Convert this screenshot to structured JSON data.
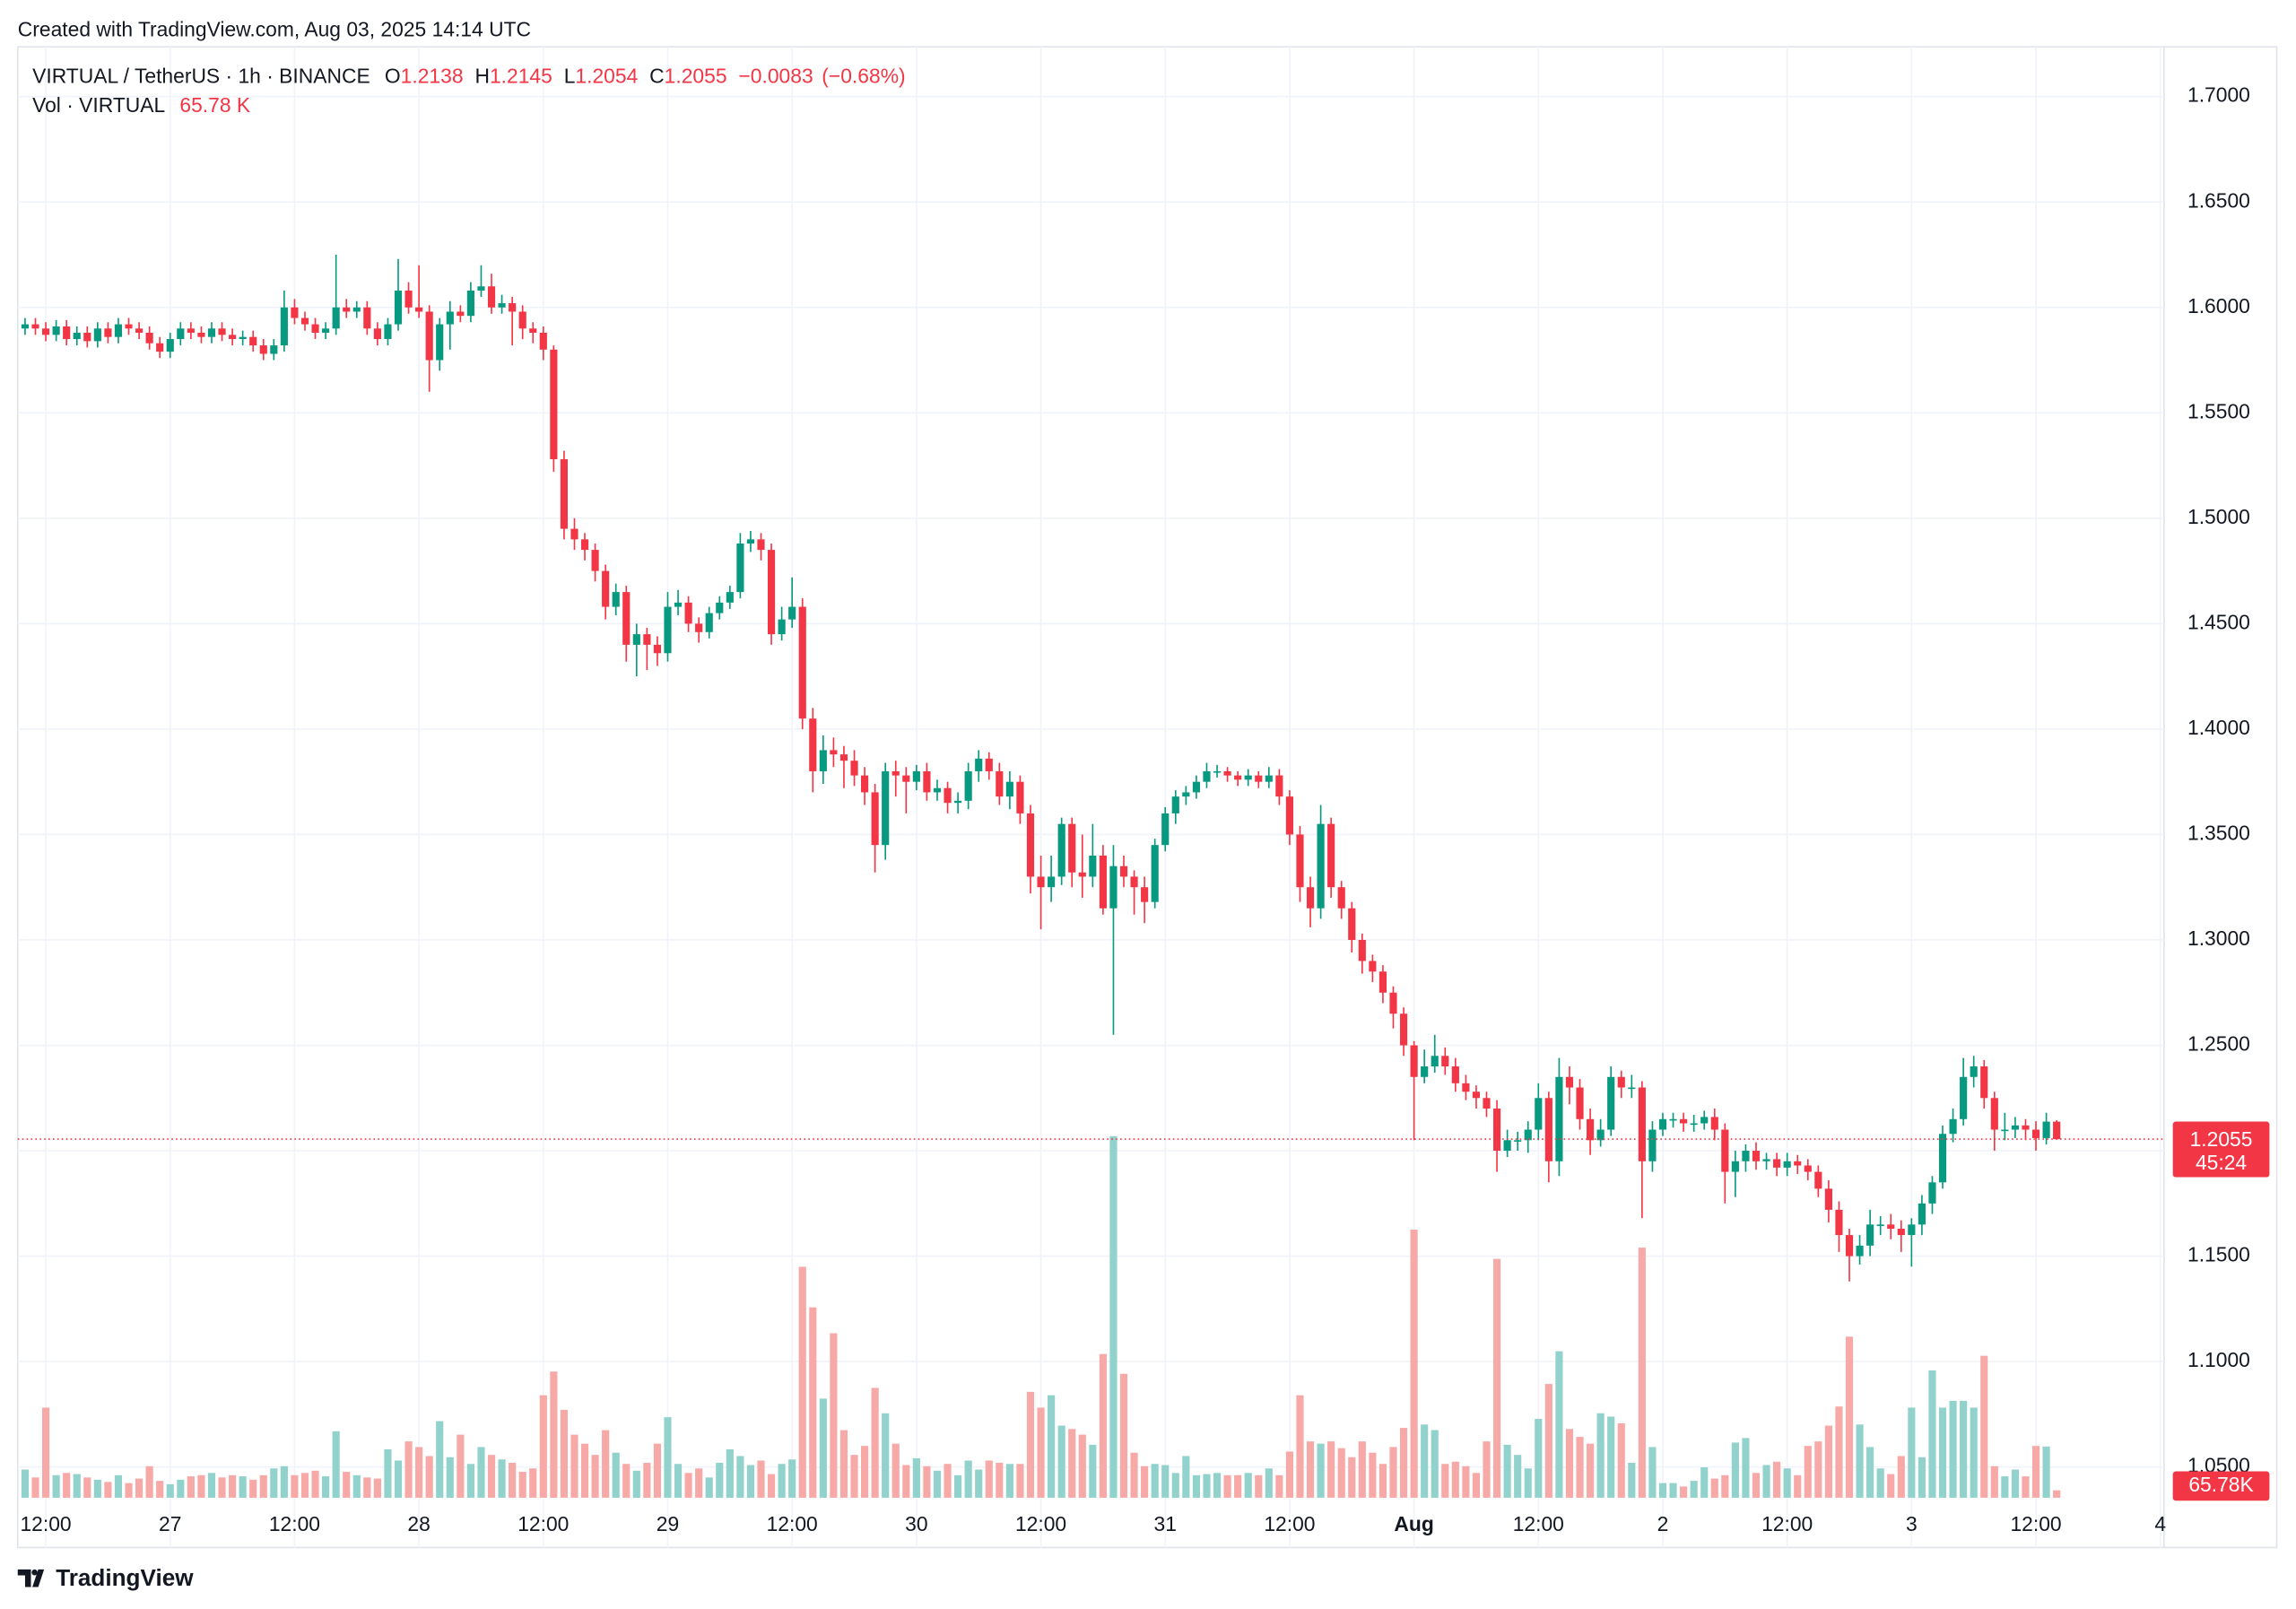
{
  "header": {
    "created": "Created with TradingView.com, Aug 03, 2025 14:14 UTC"
  },
  "chart_data": {
    "type": "candlestick",
    "symbol": "VIRTUAL / TetherUS · 1h · BINANCE",
    "legend_keys": {
      "open": "O",
      "high": "H",
      "low": "L",
      "close": "C"
    },
    "last": {
      "open": 1.2138,
      "high": 1.2145,
      "low": 1.2054,
      "close": 1.2055,
      "change": {
        "value": -0.0083,
        "label": "−0.0083"
      },
      "change_pct": {
        "value": -0.68,
        "label": "(−0.68%)"
      },
      "volume": {
        "value": 65.78,
        "label": "65.78 K"
      }
    },
    "volume_title": "Vol · VIRTUAL",
    "countdown": "45:24",
    "volume_tag": {
      "value": 65.78,
      "label": "65.78K"
    },
    "up_color": "#089981",
    "down_color": "#f23645",
    "up_volume_color": "#92d2cc",
    "down_volume_color": "#f7a9a7",
    "grid": true,
    "ylim": [
      1.0118,
      1.7236
    ],
    "yticks": [
      {
        "value": 1.05,
        "label": "1.0500"
      },
      {
        "value": 1.1,
        "label": "1.1000"
      },
      {
        "value": 1.15,
        "label": "1.1500"
      },
      {
        "value": 1.2,
        "label": "1.2000"
      },
      {
        "value": 1.25,
        "label": "1.2500"
      },
      {
        "value": 1.3,
        "label": "1.3000"
      },
      {
        "value": 1.35,
        "label": "1.3500"
      },
      {
        "value": 1.4,
        "label": "1.4000"
      },
      {
        "value": 1.45,
        "label": "1.4500"
      },
      {
        "value": 1.5,
        "label": "1.5000"
      },
      {
        "value": 1.55,
        "label": "1.5500"
      },
      {
        "value": 1.6,
        "label": "1.6000"
      },
      {
        "value": 1.65,
        "label": "1.6500"
      },
      {
        "value": 1.7,
        "label": "1.7000"
      }
    ],
    "xlim": [
      -0.706,
      206.36
    ],
    "xticks": [
      {
        "value": 2,
        "label": "12:00"
      },
      {
        "value": 14,
        "label": "27"
      },
      {
        "value": 26,
        "label": "12:00"
      },
      {
        "value": 38,
        "label": "28"
      },
      {
        "value": 50,
        "label": "12:00"
      },
      {
        "value": 62,
        "label": "29"
      },
      {
        "value": 74,
        "label": "12:00"
      },
      {
        "value": 86,
        "label": "30"
      },
      {
        "value": 98,
        "label": "12:00"
      },
      {
        "value": 110,
        "label": "31"
      },
      {
        "value": 122,
        "label": "12:00"
      },
      {
        "value": 134,
        "label": "Aug"
      },
      {
        "value": 146,
        "label": "12:00"
      },
      {
        "value": 158,
        "label": "2"
      },
      {
        "value": 170,
        "label": "12:00"
      },
      {
        "value": 182,
        "label": "3"
      },
      {
        "value": 194,
        "label": "12:00"
      },
      {
        "value": 206,
        "label": "4"
      }
    ],
    "open": [
      1.59,
      1.592,
      1.59,
      1.587,
      1.591,
      1.585,
      1.588,
      1.584,
      1.59,
      1.586,
      1.592,
      1.59,
      1.588,
      1.583,
      1.579,
      1.585,
      1.59,
      1.588,
      1.586,
      1.59,
      1.587,
      1.585,
      1.586,
      1.582,
      1.578,
      1.582,
      1.6,
      1.595,
      1.592,
      1.588,
      1.59,
      1.6,
      1.598,
      1.6,
      1.59,
      1.585,
      1.592,
      1.608,
      1.6,
      1.598,
      1.575,
      1.592,
      1.598,
      1.596,
      1.608,
      1.61,
      1.6,
      1.602,
      1.598,
      1.59,
      1.588,
      1.58,
      1.528,
      1.495,
      1.49,
      1.485,
      1.475,
      1.458,
      1.465,
      1.44,
      1.445,
      1.44,
      1.436,
      1.458,
      1.46,
      1.45,
      1.446,
      1.455,
      1.46,
      1.465,
      1.488,
      1.49,
      1.485,
      1.445,
      1.452,
      1.458,
      1.405,
      1.38,
      1.39,
      1.388,
      1.385,
      1.378,
      1.37,
      1.345,
      1.38,
      1.378,
      1.375,
      1.38,
      1.37,
      1.372,
      1.365,
      1.366,
      1.38,
      1.386,
      1.38,
      1.368,
      1.375,
      1.36,
      1.33,
      1.325,
      1.33,
      1.355,
      1.332,
      1.33,
      1.34,
      1.315,
      1.335,
      1.33,
      1.325,
      1.318,
      1.345,
      1.36,
      1.368,
      1.37,
      1.375,
      1.38,
      1.38,
      1.378,
      1.376,
      1.378,
      1.375,
      1.378,
      1.368,
      1.35,
      1.325,
      1.315,
      1.355,
      1.325,
      1.315,
      1.3,
      1.29,
      1.285,
      1.275,
      1.265,
      1.25,
      1.235,
      1.24,
      1.245,
      1.24,
      1.232,
      1.228,
      1.225,
      1.22,
      1.2,
      1.205,
      1.205,
      1.21,
      1.225,
      1.195,
      1.235,
      1.23,
      1.215,
      1.205,
      1.21,
      1.235,
      1.23,
      1.23,
      1.195,
      1.21,
      1.215,
      1.215,
      1.213,
      1.213,
      1.216,
      1.21,
      1.19,
      1.195,
      1.2,
      1.195,
      1.196,
      1.192,
      1.195,
      1.193,
      1.19,
      1.182,
      1.172,
      1.16,
      1.15,
      1.155,
      1.165,
      1.165,
      1.163,
      1.16,
      1.165,
      1.175,
      1.185,
      1.208,
      1.215,
      1.235,
      1.24,
      1.225,
      1.21,
      1.21,
      1.212,
      1.21,
      1.206,
      1.2138
    ],
    "high": [
      1.595,
      1.595,
      1.593,
      1.594,
      1.594,
      1.591,
      1.591,
      1.593,
      1.593,
      1.595,
      1.595,
      1.593,
      1.591,
      1.586,
      1.588,
      1.593,
      1.593,
      1.591,
      1.593,
      1.593,
      1.59,
      1.589,
      1.589,
      1.585,
      1.585,
      1.608,
      1.604,
      1.598,
      1.595,
      1.593,
      1.625,
      1.604,
      1.603,
      1.603,
      1.593,
      1.595,
      1.623,
      1.612,
      1.62,
      1.601,
      1.595,
      1.603,
      1.601,
      1.612,
      1.62,
      1.616,
      1.606,
      1.605,
      1.601,
      1.593,
      1.591,
      1.582,
      1.532,
      1.5,
      1.493,
      1.488,
      1.478,
      1.469,
      1.468,
      1.45,
      1.448,
      1.444,
      1.465,
      1.466,
      1.463,
      1.453,
      1.458,
      1.463,
      1.468,
      1.493,
      1.494,
      1.493,
      1.488,
      1.458,
      1.472,
      1.462,
      1.41,
      1.397,
      1.396,
      1.392,
      1.39,
      1.382,
      1.374,
      1.384,
      1.385,
      1.382,
      1.383,
      1.384,
      1.376,
      1.375,
      1.37,
      1.384,
      1.39,
      1.389,
      1.384,
      1.38,
      1.378,
      1.364,
      1.34,
      1.34,
      1.358,
      1.358,
      1.35,
      1.355,
      1.345,
      1.345,
      1.34,
      1.333,
      1.33,
      1.348,
      1.363,
      1.371,
      1.373,
      1.378,
      1.384,
      1.383,
      1.382,
      1.38,
      1.381,
      1.38,
      1.382,
      1.381,
      1.371,
      1.354,
      1.33,
      1.364,
      1.358,
      1.328,
      1.318,
      1.303,
      1.293,
      1.288,
      1.278,
      1.268,
      1.252,
      1.248,
      1.255,
      1.249,
      1.244,
      1.236,
      1.231,
      1.228,
      1.224,
      1.21,
      1.209,
      1.214,
      1.232,
      1.228,
      1.244,
      1.24,
      1.234,
      1.22,
      1.215,
      1.24,
      1.238,
      1.236,
      1.233,
      1.214,
      1.218,
      1.218,
      1.218,
      1.217,
      1.219,
      1.22,
      1.213,
      1.2,
      1.203,
      1.204,
      1.199,
      1.199,
      1.199,
      1.198,
      1.196,
      1.193,
      1.186,
      1.176,
      1.163,
      1.16,
      1.172,
      1.169,
      1.17,
      1.167,
      1.168,
      1.179,
      1.188,
      1.212,
      1.22,
      1.244,
      1.245,
      1.243,
      1.228,
      1.218,
      1.216,
      1.215,
      1.214,
      1.218,
      1.2145
    ],
    "low": [
      1.587,
      1.587,
      1.584,
      1.584,
      1.582,
      1.582,
      1.581,
      1.581,
      1.583,
      1.583,
      1.587,
      1.585,
      1.58,
      1.576,
      1.576,
      1.582,
      1.585,
      1.583,
      1.583,
      1.584,
      1.582,
      1.582,
      1.579,
      1.575,
      1.575,
      1.579,
      1.592,
      1.589,
      1.585,
      1.585,
      1.587,
      1.595,
      1.595,
      1.587,
      1.582,
      1.582,
      1.589,
      1.597,
      1.595,
      1.56,
      1.57,
      1.58,
      1.593,
      1.593,
      1.605,
      1.597,
      1.597,
      1.582,
      1.585,
      1.583,
      1.575,
      1.522,
      1.49,
      1.485,
      1.48,
      1.47,
      1.452,
      1.454,
      1.432,
      1.425,
      1.428,
      1.43,
      1.432,
      1.454,
      1.446,
      1.441,
      1.443,
      1.452,
      1.457,
      1.462,
      1.484,
      1.48,
      1.44,
      1.442,
      1.448,
      1.4,
      1.37,
      1.374,
      1.382,
      1.372,
      1.373,
      1.364,
      1.332,
      1.338,
      1.368,
      1.36,
      1.371,
      1.366,
      1.366,
      1.36,
      1.36,
      1.362,
      1.375,
      1.376,
      1.364,
      1.362,
      1.355,
      1.322,
      1.305,
      1.318,
      1.326,
      1.325,
      1.32,
      1.325,
      1.312,
      1.255,
      1.325,
      1.312,
      1.308,
      1.315,
      1.342,
      1.355,
      1.364,
      1.367,
      1.372,
      1.377,
      1.375,
      1.373,
      1.373,
      1.372,
      1.372,
      1.364,
      1.345,
      1.318,
      1.306,
      1.31,
      1.32,
      1.31,
      1.294,
      1.284,
      1.28,
      1.27,
      1.258,
      1.245,
      1.205,
      1.232,
      1.237,
      1.236,
      1.228,
      1.224,
      1.22,
      1.216,
      1.19,
      1.197,
      1.2,
      1.199,
      1.205,
      1.185,
      1.188,
      1.222,
      1.21,
      1.198,
      1.202,
      1.207,
      1.225,
      1.225,
      1.168,
      1.19,
      1.207,
      1.211,
      1.209,
      1.209,
      1.21,
      1.205,
      1.175,
      1.178,
      1.19,
      1.191,
      1.191,
      1.188,
      1.188,
      1.189,
      1.186,
      1.178,
      1.166,
      1.152,
      1.138,
      1.146,
      1.15,
      1.16,
      1.158,
      1.152,
      1.145,
      1.16,
      1.17,
      1.182,
      1.204,
      1.212,
      1.23,
      1.22,
      1.2,
      1.205,
      1.206,
      1.205,
      1.2,
      1.203,
      1.2054
    ],
    "close": [
      1.592,
      1.59,
      1.587,
      1.591,
      1.585,
      1.588,
      1.584,
      1.59,
      1.586,
      1.592,
      1.59,
      1.588,
      1.583,
      1.579,
      1.585,
      1.59,
      1.588,
      1.586,
      1.59,
      1.587,
      1.585,
      1.586,
      1.582,
      1.578,
      1.582,
      1.6,
      1.595,
      1.592,
      1.588,
      1.59,
      1.6,
      1.598,
      1.6,
      1.59,
      1.585,
      1.592,
      1.608,
      1.6,
      1.598,
      1.575,
      1.592,
      1.598,
      1.596,
      1.608,
      1.61,
      1.6,
      1.602,
      1.598,
      1.59,
      1.588,
      1.58,
      1.528,
      1.495,
      1.49,
      1.485,
      1.475,
      1.458,
      1.465,
      1.44,
      1.445,
      1.44,
      1.436,
      1.458,
      1.46,
      1.45,
      1.446,
      1.455,
      1.46,
      1.465,
      1.488,
      1.49,
      1.485,
      1.445,
      1.452,
      1.458,
      1.405,
      1.38,
      1.39,
      1.388,
      1.385,
      1.378,
      1.37,
      1.345,
      1.38,
      1.378,
      1.375,
      1.38,
      1.37,
      1.372,
      1.365,
      1.366,
      1.38,
      1.386,
      1.38,
      1.368,
      1.375,
      1.36,
      1.33,
      1.325,
      1.33,
      1.355,
      1.332,
      1.33,
      1.34,
      1.315,
      1.335,
      1.33,
      1.325,
      1.318,
      1.345,
      1.36,
      1.368,
      1.37,
      1.375,
      1.38,
      1.38,
      1.378,
      1.376,
      1.378,
      1.375,
      1.378,
      1.368,
      1.35,
      1.325,
      1.315,
      1.355,
      1.325,
      1.315,
      1.3,
      1.29,
      1.285,
      1.275,
      1.265,
      1.25,
      1.235,
      1.24,
      1.245,
      1.24,
      1.232,
      1.228,
      1.225,
      1.22,
      1.2,
      1.205,
      1.205,
      1.21,
      1.225,
      1.195,
      1.235,
      1.23,
      1.215,
      1.205,
      1.21,
      1.235,
      1.23,
      1.23,
      1.195,
      1.21,
      1.215,
      1.215,
      1.213,
      1.213,
      1.216,
      1.21,
      1.19,
      1.195,
      1.2,
      1.195,
      1.196,
      1.192,
      1.195,
      1.193,
      1.19,
      1.182,
      1.172,
      1.16,
      1.15,
      1.155,
      1.165,
      1.165,
      1.163,
      1.16,
      1.165,
      1.175,
      1.185,
      1.208,
      1.215,
      1.235,
      1.24,
      1.225,
      1.21,
      1.21,
      1.212,
      1.21,
      1.206,
      1.2138,
      1.2055
    ],
    "volume": [
      250,
      180,
      800,
      200,
      220,
      210,
      180,
      160,
      140,
      200,
      130,
      170,
      280,
      150,
      120,
      160,
      190,
      200,
      220,
      180,
      200,
      190,
      160,
      200,
      260,
      280,
      200,
      220,
      240,
      190,
      590,
      230,
      200,
      180,
      170,
      430,
      330,
      500,
      450,
      370,
      680,
      360,
      560,
      300,
      450,
      380,
      340,
      310,
      230,
      260,
      910,
      1120,
      780,
      560,
      480,
      380,
      600,
      400,
      300,
      240,
      310,
      480,
      715,
      300,
      220,
      260,
      180,
      310,
      430,
      370,
      290,
      330,
      210,
      300,
      340,
      2050,
      1690,
      880,
      1460,
      600,
      380,
      460,
      975,
      750,
      480,
      290,
      350,
      280,
      240,
      300,
      200,
      330,
      250,
      330,
      310,
      300,
      300,
      940,
      800,
      910,
      640,
      610,
      560,
      470,
      1275,
      3210,
      1100,
      400,
      280,
      300,
      290,
      220,
      370,
      200,
      210,
      220,
      200,
      200,
      220,
      200,
      260,
      200,
      410,
      910,
      500,
      480,
      500,
      440,
      360,
      500,
      400,
      300,
      450,
      620,
      2380,
      650,
      600,
      300,
      320,
      280,
      220,
      500,
      2120,
      470,
      380,
      260,
      700,
      1010,
      1300,
      610,
      540,
      480,
      750,
      720,
      660,
      310,
      2220,
      450,
      130,
      130,
      100,
      150,
      270,
      170,
      200,
      490,
      530,
      220,
      290,
      320,
      260,
      200,
      460,
      500,
      640,
      810,
      1430,
      650,
      450,
      260,
      210,
      370,
      800,
      360,
      1130,
      800,
      860,
      860,
      800,
      1260,
      280,
      190,
      250,
      190,
      460,
      455,
      65.78
    ]
  },
  "footer": {
    "brand": "TradingView"
  }
}
